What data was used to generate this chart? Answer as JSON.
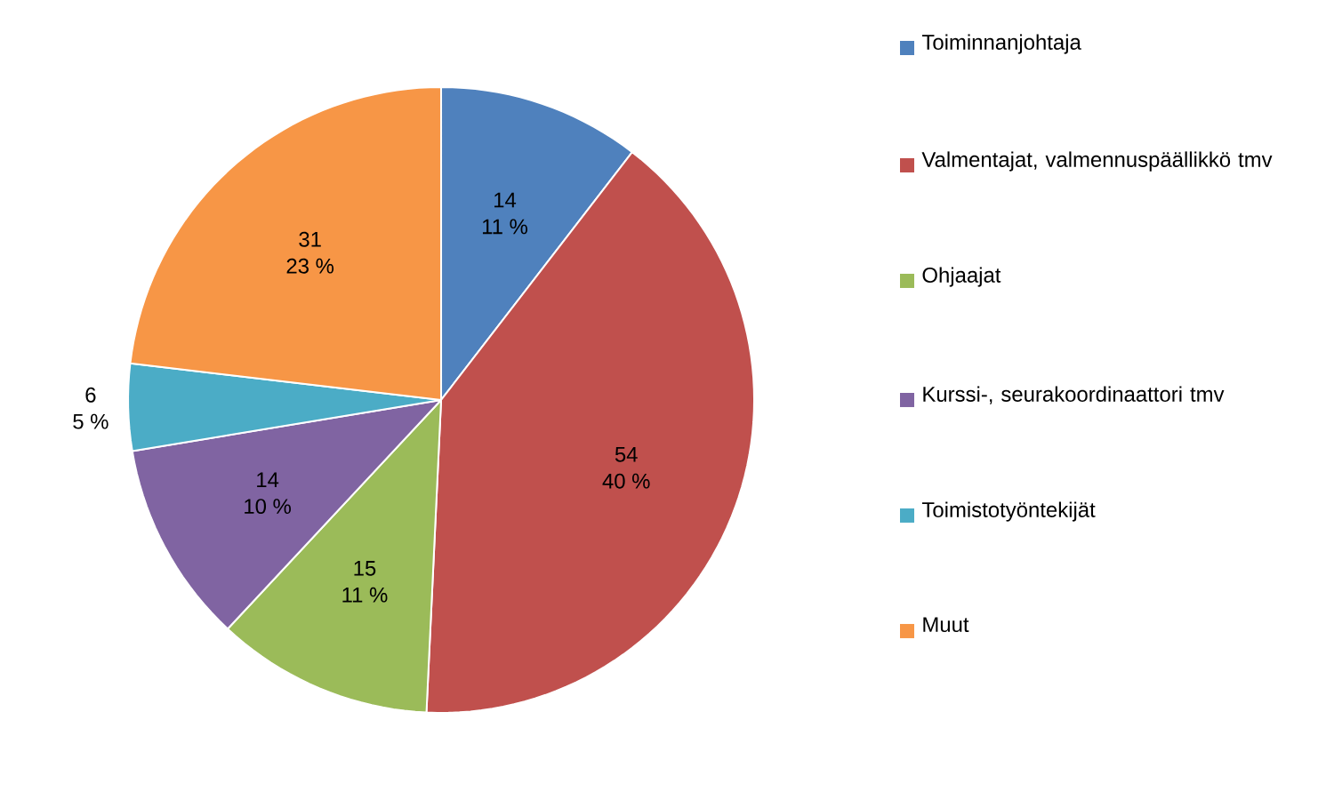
{
  "chart_data": {
    "type": "pie",
    "categories": [
      "Toiminnanjohtaja",
      "Valmentajat, valmennuspäällikkö tmv",
      "Ohjaajat",
      "Kurssi-, seurakoordinaattori tmv",
      "Toimistotyöntekijät",
      "Muut"
    ],
    "values": [
      14,
      54,
      15,
      14,
      6,
      31
    ],
    "colors": [
      "#4f81bd",
      "#c0504d",
      "#9bbb59",
      "#8064a2",
      "#4bacc6",
      "#f79646"
    ],
    "data_labels": true,
    "annotations": [
      {
        "text": "11 %",
        "x": "Toiminnanjohtaja"
      },
      {
        "text": "40 %",
        "x": "Valmentajat, valmennuspäällikkö tmv"
      },
      {
        "text": "11 %",
        "x": "Ohjaajat"
      },
      {
        "text": "10 %",
        "x": "Kurssi-, seurakoordinaattori tmv"
      },
      {
        "text": "5 %",
        "x": "Toimistotyöntekijät"
      },
      {
        "text": "23 %",
        "x": "Muut"
      }
    ],
    "legend": "right"
  }
}
